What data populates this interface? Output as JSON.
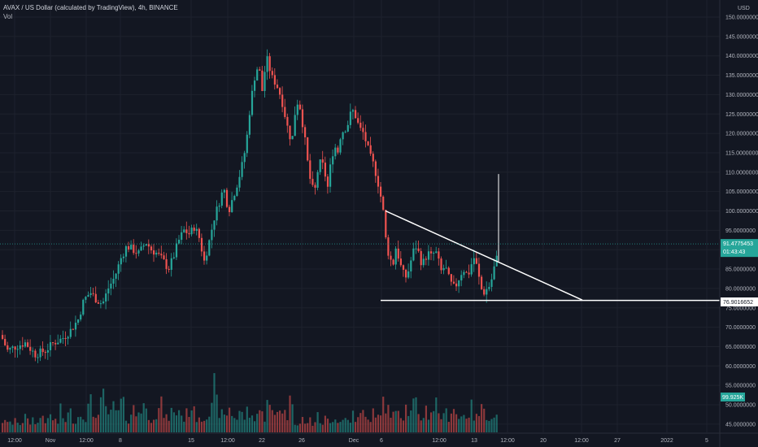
{
  "legend": {
    "title": "AVAX / US Dollar (calculated by TradingView), 4h, BINANCE",
    "volume": "Vol"
  },
  "colors": {
    "background": "#131722",
    "grid": "#1e222d",
    "up": "#26a69a",
    "down": "#ef5350",
    "trendline": "#ffffff",
    "price_label": "#26a69a",
    "level_label": "#ffffff",
    "volume_label": "#26a69a",
    "axis_text": "#b2b5be"
  },
  "chart_data": {
    "type": "candlestick",
    "symbol": "AVAX / US Dollar",
    "timeframe": "4h",
    "exchange": "BINANCE",
    "y_axis": {
      "unit": "USD",
      "range": [
        45,
        150
      ],
      "ticks": [
        "150.0000000",
        "145.0000000",
        "140.0000000",
        "135.0000000",
        "130.0000000",
        "125.0000000",
        "120.0000000",
        "115.0000000",
        "110.0000000",
        "105.0000000",
        "100.0000000",
        "95.0000000",
        "90.0000000",
        "85.0000000",
        "80.0000000",
        "75.0000000",
        "70.0000000",
        "65.0000000",
        "60.0000000",
        "55.0000000",
        "50.0000000",
        "45.0000000"
      ]
    },
    "x_axis": {
      "ticks": [
        "12:00",
        "Nov",
        "12:00",
        "8",
        "15",
        "12:00",
        "22",
        "26",
        "Dec",
        "6",
        "12:00",
        "13",
        "12:00",
        "20",
        "12:00",
        "27",
        "2022",
        "5"
      ]
    },
    "last_price": {
      "value": 91.4775453,
      "label": "91.4775453",
      "countdown": "01:43:43"
    },
    "horizontal_level": {
      "value": 76.9016652,
      "label": "76.9016652"
    },
    "descending_trendline": {
      "start": [
        "Dec 5",
        100.0
      ],
      "end": [
        "Dec 22",
        77.0
      ]
    },
    "volume_label": "99.925K",
    "price_path": [
      [
        0,
        68
      ],
      [
        8,
        64
      ],
      [
        18,
        65
      ],
      [
        30,
        66
      ],
      [
        42,
        63
      ],
      [
        55,
        64
      ],
      [
        65,
        66
      ],
      [
        75,
        67
      ],
      [
        85,
        69
      ],
      [
        95,
        72
      ],
      [
        102,
        77
      ],
      [
        110,
        79
      ],
      [
        118,
        77
      ],
      [
        125,
        76
      ],
      [
        132,
        80
      ],
      [
        140,
        83
      ],
      [
        148,
        88
      ],
      [
        155,
        91
      ],
      [
        162,
        90
      ],
      [
        170,
        89
      ],
      [
        178,
        92
      ],
      [
        185,
        90
      ],
      [
        192,
        89
      ],
      [
        200,
        87
      ],
      [
        206,
        85
      ],
      [
        212,
        88
      ],
      [
        218,
        92
      ],
      [
        225,
        95
      ],
      [
        232,
        94
      ],
      [
        238,
        96
      ],
      [
        244,
        93
      ],
      [
        250,
        87
      ],
      [
        256,
        92
      ],
      [
        262,
        98
      ],
      [
        268,
        102
      ],
      [
        274,
        106
      ],
      [
        280,
        100
      ],
      [
        286,
        104
      ],
      [
        292,
        108
      ],
      [
        298,
        113
      ],
      [
        302,
        118
      ],
      [
        306,
        126
      ],
      [
        310,
        132
      ],
      [
        314,
        137
      ],
      [
        318,
        136
      ],
      [
        322,
        130
      ],
      [
        326,
        140
      ],
      [
        330,
        137
      ],
      [
        334,
        134
      ],
      [
        338,
        133
      ],
      [
        342,
        131
      ],
      [
        346,
        128
      ],
      [
        350,
        124
      ],
      [
        354,
        120
      ],
      [
        358,
        118
      ],
      [
        362,
        126
      ],
      [
        366,
        129
      ],
      [
        370,
        124
      ],
      [
        374,
        118
      ],
      [
        378,
        111
      ],
      [
        382,
        106
      ],
      [
        386,
        105
      ],
      [
        390,
        111
      ],
      [
        394,
        113
      ],
      [
        398,
        110
      ],
      [
        402,
        106
      ],
      [
        406,
        113
      ],
      [
        410,
        117
      ],
      [
        414,
        115
      ],
      [
        418,
        120
      ],
      [
        422,
        121
      ],
      [
        426,
        122
      ],
      [
        430,
        125
      ],
      [
        434,
        126
      ],
      [
        438,
        123
      ],
      [
        442,
        121
      ],
      [
        446,
        120
      ],
      [
        450,
        117
      ],
      [
        454,
        114
      ],
      [
        458,
        112
      ],
      [
        462,
        109
      ],
      [
        466,
        105
      ],
      [
        470,
        100
      ],
      [
        474,
        91
      ],
      [
        478,
        88
      ],
      [
        482,
        86
      ],
      [
        486,
        91
      ],
      [
        490,
        87
      ],
      [
        494,
        84
      ],
      [
        498,
        83
      ],
      [
        502,
        85
      ],
      [
        506,
        89
      ],
      [
        510,
        91
      ],
      [
        514,
        89
      ],
      [
        518,
        86
      ],
      [
        522,
        88
      ],
      [
        526,
        89
      ],
      [
        530,
        88
      ],
      [
        534,
        90
      ],
      [
        538,
        87
      ],
      [
        542,
        84
      ],
      [
        546,
        86
      ],
      [
        550,
        83
      ],
      [
        554,
        81
      ],
      [
        558,
        80
      ],
      [
        562,
        82
      ],
      [
        566,
        84
      ],
      [
        570,
        85
      ],
      [
        574,
        83
      ],
      [
        578,
        86
      ],
      [
        582,
        88
      ],
      [
        586,
        85
      ],
      [
        590,
        80
      ],
      [
        594,
        79
      ],
      [
        598,
        80
      ],
      [
        602,
        81
      ],
      [
        606,
        85
      ],
      [
        610,
        88
      ],
      [
        613,
        91.5
      ]
    ],
    "volume_profile": [
      12,
      10,
      9,
      14,
      8,
      11,
      13,
      9,
      12,
      16,
      11,
      10,
      14,
      12,
      9,
      15,
      18,
      13,
      11,
      17,
      14,
      12,
      10,
      22,
      15,
      13,
      18,
      20,
      14,
      12,
      16,
      19,
      21,
      15,
      25,
      30,
      18,
      22,
      17,
      28,
      35,
      24,
      20,
      18,
      26,
      22,
      19,
      30,
      27,
      16,
      14,
      20,
      24,
      18,
      22,
      26,
      30,
      21,
      18,
      15,
      20,
      17,
      23,
      28,
      19,
      14,
      16,
      22,
      18,
      20,
      25,
      17,
      15,
      19,
      23,
      28,
      20,
      16,
      18,
      14,
      17,
      21,
      19,
      24,
      45,
      30,
      22,
      18,
      16,
      20,
      25,
      19,
      17,
      14,
      22,
      18,
      16,
      21,
      19,
      15,
      17,
      20,
      23,
      18,
      16,
      42,
      25,
      19,
      17,
      22,
      28,
      24,
      20,
      18,
      30,
      38
    ]
  }
}
